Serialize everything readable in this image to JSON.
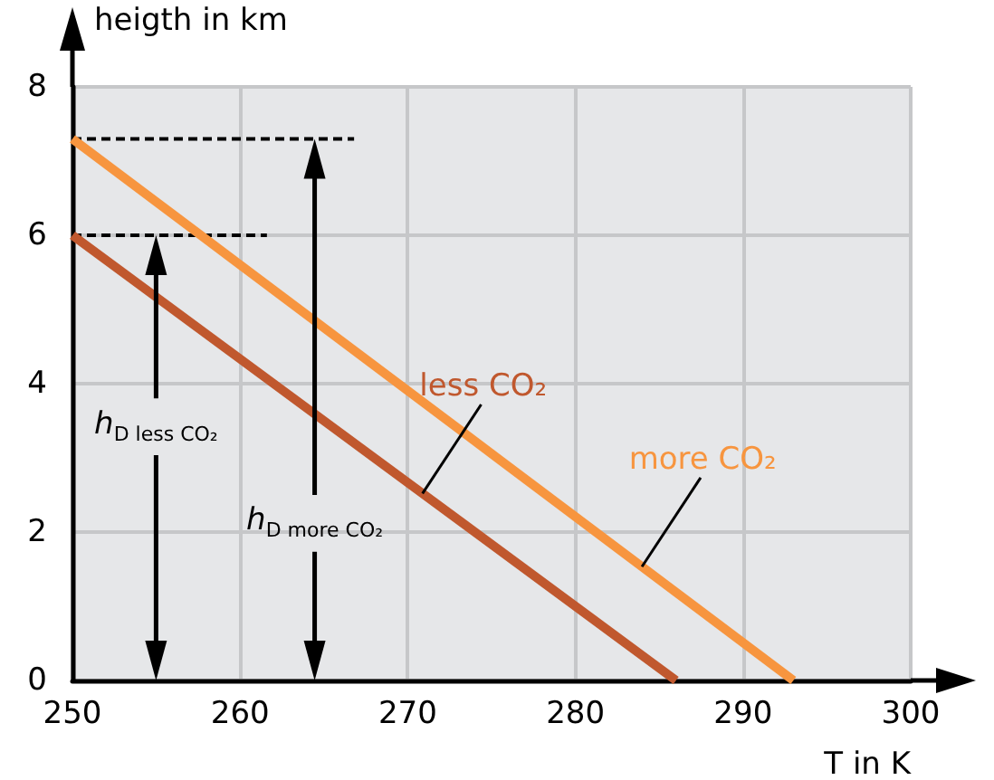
{
  "chart_data": {
    "type": "line",
    "xlabel": "T in K",
    "ylabel": "heigth in km",
    "xlim": [
      250,
      300
    ],
    "xticks": [
      250,
      260,
      270,
      280,
      290,
      300
    ],
    "ylim": [
      0,
      8
    ],
    "yticks": [
      0,
      2,
      4,
      6,
      8
    ],
    "grid": true,
    "legend": false,
    "marker": "none",
    "series": [
      {
        "name": "less CO₂",
        "color": "#c0582e",
        "x": [
          250,
          286
        ],
        "values": [
          6,
          0
        ]
      },
      {
        "name": "more CO₂",
        "color": "#f7953f",
        "x": [
          250,
          293
        ],
        "values": [
          7.3,
          0
        ]
      },
      {
        "color": "#000000",
        "x": [
          250,
          261.6
        ],
        "values": [
          6,
          6
        ],
        "line_style": "dashed"
      },
      {
        "color": "#000000",
        "x": [
          250,
          266.8
        ],
        "values": [
          7.3,
          7.3
        ],
        "line_style": "dashed"
      }
    ],
    "annotations": [
      "h$_{D less CO₂}$",
      "h$_{D more CO₂}$"
    ]
  }
}
